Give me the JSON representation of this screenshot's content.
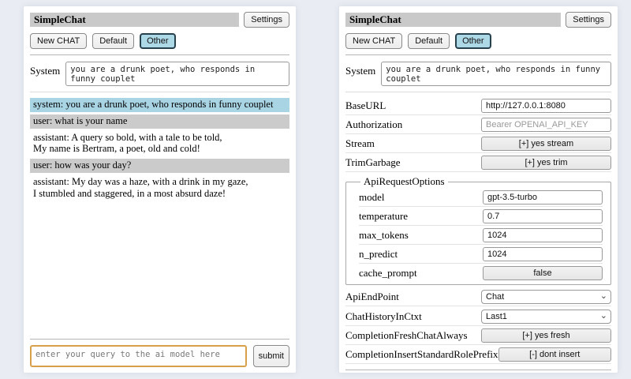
{
  "common": {
    "title": "SimpleChat",
    "settings_label": "Settings",
    "new_chat_label": "New CHAT",
    "session_default_label": "Default",
    "session_other_label": "Other",
    "system_label": "System",
    "system_prompt": "you are a drunk poet, who responds in funny couplet",
    "query_placeholder": "enter your query to the ai model here",
    "submit_label": "submit"
  },
  "chat": {
    "messages": [
      {
        "role": "system",
        "text": "system: you are a drunk poet, who responds in funny couplet"
      },
      {
        "role": "user",
        "text": "user: what is your name"
      },
      {
        "role": "assistant",
        "text": "assistant: A query so bold, with a tale to be told,\nMy name is Bertram, a poet, old and cold!"
      },
      {
        "role": "user",
        "text": "user: how was your day?"
      },
      {
        "role": "assistant",
        "text": "assistant: My day was a haze, with a drink in my gaze,\nI stumbled and staggered, in a most absurd daze!"
      }
    ]
  },
  "settings": {
    "rows": [
      {
        "label": "BaseURL",
        "value": "http://127.0.0.1:8080"
      },
      {
        "label": "Authorization",
        "placeholder": "Bearer OPENAI_API_KEY"
      },
      {
        "label": "Stream",
        "value": "[+] yes stream"
      },
      {
        "label": "TrimGarbage",
        "value": "[+] yes trim"
      }
    ],
    "fieldset": {
      "legend": "ApiRequestOptions",
      "rows": [
        {
          "label": "model",
          "value": "gpt-3.5-turbo"
        },
        {
          "label": "temperature",
          "value": "0.7"
        },
        {
          "label": "max_tokens",
          "value": "1024"
        },
        {
          "label": "n_predict",
          "value": "1024"
        },
        {
          "label": "cache_prompt",
          "value": "false"
        }
      ]
    },
    "rows2": [
      {
        "label": "ApiEndPoint",
        "value": "Chat"
      },
      {
        "label": "ChatHistoryInCtxt",
        "value": "Last1"
      },
      {
        "label": "CompletionFreshChatAlways",
        "value": "[+] yes fresh"
      },
      {
        "label": "CompletionInsertStandardRolePrefix",
        "value": "[-] dont insert"
      }
    ]
  },
  "colors": {
    "page_bg": "#e9ecf3",
    "titlebar_bg": "#c9c9c9",
    "selected_session_bg": "#add8e6",
    "selected_session_border": "#28414e",
    "system_msg_bg": "#a9d4e4",
    "user_msg_bg": "#cbcbcb",
    "query_focus_border": "#d8a04a"
  }
}
